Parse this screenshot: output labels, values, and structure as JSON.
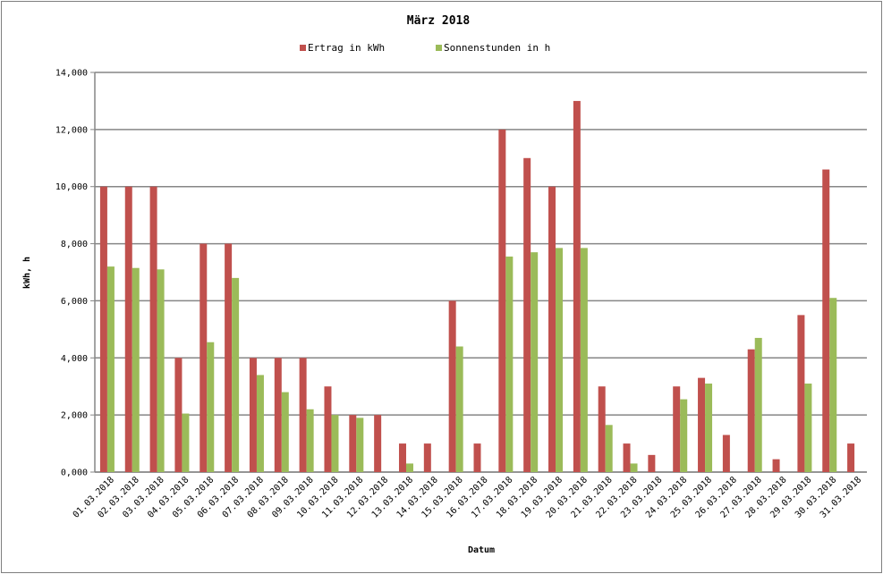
{
  "chart_data": {
    "type": "bar",
    "title": "März 2018",
    "xlabel": "Datum",
    "ylabel": "kWh, h",
    "ylim": [
      0,
      14
    ],
    "yticks": [
      "0,000",
      "2,000",
      "4,000",
      "6,000",
      "8,000",
      "10,000",
      "12,000",
      "14,000"
    ],
    "grid": true,
    "legend_position": "top",
    "categories": [
      "01.03.2018",
      "02.03.2018",
      "03.03.2018",
      "04.03.2018",
      "05.03.2018",
      "06.03.2018",
      "07.03.2018",
      "08.03.2018",
      "09.03.2018",
      "10.03.2018",
      "11.03.2018",
      "12.03.2018",
      "13.03.2018",
      "14.03.2018",
      "15.03.2018",
      "16.03.2018",
      "17.03.2018",
      "18.03.2018",
      "19.03.2018",
      "20.03.2018",
      "21.03.2018",
      "22.03.2018",
      "23.03.2018",
      "24.03.2018",
      "25.03.2018",
      "26.03.2018",
      "27.03.2018",
      "28.03.2018",
      "29.03.2018",
      "30.03.2018",
      "31.03.2018"
    ],
    "series": [
      {
        "name": "Ertrag in kWh",
        "color": "#c0504d",
        "values": [
          10,
          10,
          10,
          4,
          8,
          8,
          4,
          4,
          4,
          3,
          2,
          2,
          1,
          1,
          6,
          1,
          12,
          11,
          10,
          13,
          3,
          1,
          0.6,
          3,
          3.3,
          1.3,
          4.3,
          0.45,
          5.5,
          10.6,
          1
        ]
      },
      {
        "name": "Sonnenstunden in h",
        "color": "#9bbb59",
        "values": [
          7.2,
          7.15,
          7.1,
          2.05,
          4.55,
          6.8,
          3.4,
          2.8,
          2.2,
          2,
          1.9,
          0,
          0.3,
          0,
          4.4,
          0,
          7.55,
          7.7,
          7.85,
          7.85,
          1.65,
          0.3,
          0,
          2.55,
          3.1,
          0,
          4.7,
          0,
          3.1,
          6.1,
          0
        ]
      }
    ]
  }
}
